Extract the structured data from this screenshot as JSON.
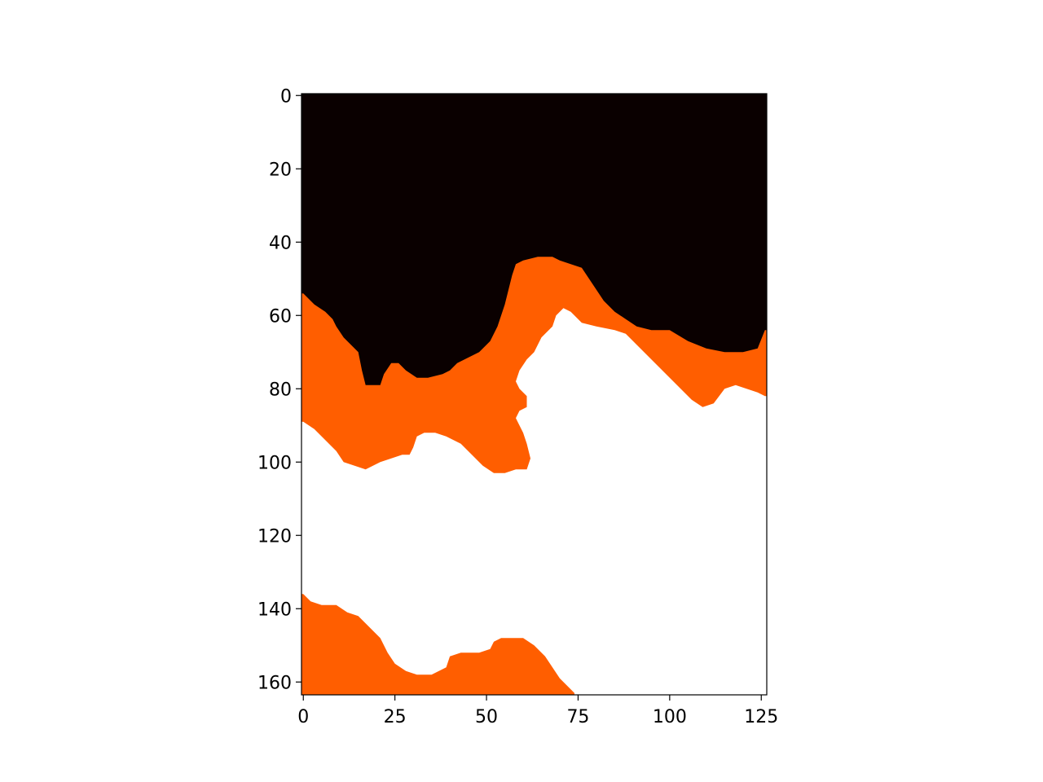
{
  "chart_data": {
    "type": "heatmap",
    "title": "",
    "xlabel": "",
    "ylabel": "",
    "grid": false,
    "xlim": [
      -0.5,
      126.5
    ],
    "ylim": [
      163.5,
      -0.5
    ],
    "x_ticks": [
      0,
      25,
      50,
      75,
      100,
      125
    ],
    "y_ticks": [
      0,
      20,
      40,
      60,
      80,
      100,
      120,
      140,
      160
    ],
    "x_tick_labels": [
      "0",
      "25",
      "50",
      "75",
      "100",
      "125"
    ],
    "y_tick_labels": [
      "0",
      "20",
      "40",
      "60",
      "80",
      "100",
      "120",
      "140",
      "160"
    ],
    "classes": [
      {
        "value": 0,
        "color": "#0a0000"
      },
      {
        "value": 1,
        "color": "#ff5e00"
      },
      {
        "value": 2,
        "color": "#ffffff"
      }
    ],
    "orange_top_boundary": [
      [
        0,
        54
      ],
      [
        3,
        57
      ],
      [
        6,
        59
      ],
      [
        8,
        61
      ],
      [
        9,
        63
      ],
      [
        11,
        66
      ],
      [
        13,
        68
      ],
      [
        15,
        70
      ],
      [
        16,
        75
      ],
      [
        17,
        79
      ],
      [
        21,
        79
      ],
      [
        22,
        76
      ],
      [
        24,
        73
      ],
      [
        26,
        73
      ],
      [
        28,
        75
      ],
      [
        31,
        77
      ],
      [
        34,
        77
      ],
      [
        38,
        76
      ],
      [
        40,
        75
      ],
      [
        42,
        73
      ],
      [
        44,
        72
      ],
      [
        46,
        71
      ],
      [
        48,
        70
      ],
      [
        51,
        67
      ],
      [
        53,
        63
      ],
      [
        54,
        60
      ],
      [
        55,
        57
      ],
      [
        56,
        53
      ],
      [
        57,
        49
      ],
      [
        58,
        46
      ],
      [
        60,
        45
      ],
      [
        64,
        44
      ],
      [
        68,
        44
      ],
      [
        70,
        45
      ],
      [
        73,
        46
      ],
      [
        76,
        47
      ],
      [
        78,
        50
      ],
      [
        80,
        53
      ],
      [
        82,
        56
      ],
      [
        85,
        59
      ],
      [
        88,
        61
      ],
      [
        91,
        63
      ],
      [
        95,
        64
      ],
      [
        100,
        64
      ],
      [
        105,
        67
      ],
      [
        110,
        69
      ],
      [
        115,
        70
      ],
      [
        120,
        70
      ],
      [
        124,
        69
      ],
      [
        126,
        64
      ]
    ],
    "white_top_boundary": [
      [
        0,
        89
      ],
      [
        3,
        91
      ],
      [
        6,
        94
      ],
      [
        9,
        97
      ],
      [
        11,
        100
      ],
      [
        14,
        101
      ],
      [
        17,
        102
      ],
      [
        19,
        101
      ],
      [
        21,
        100
      ],
      [
        24,
        99
      ],
      [
        27,
        98
      ],
      [
        29,
        98
      ],
      [
        30,
        96
      ],
      [
        31,
        93
      ],
      [
        33,
        92
      ],
      [
        36,
        92
      ],
      [
        39,
        93
      ],
      [
        41,
        94
      ],
      [
        43,
        95
      ],
      [
        45,
        97
      ],
      [
        47,
        99
      ],
      [
        49,
        101
      ],
      [
        52,
        103
      ],
      [
        55,
        103
      ],
      [
        58,
        102
      ],
      [
        61,
        102
      ],
      [
        62,
        99
      ],
      [
        61,
        95
      ],
      [
        60,
        92
      ],
      [
        58,
        88
      ],
      [
        59,
        86
      ],
      [
        61,
        85
      ],
      [
        61,
        82
      ],
      [
        59,
        80
      ],
      [
        58,
        78
      ],
      [
        59,
        75
      ],
      [
        61,
        72
      ],
      [
        63,
        70
      ],
      [
        65,
        66
      ],
      [
        68,
        63
      ],
      [
        69,
        60
      ],
      [
        71,
        58
      ],
      [
        73,
        59
      ],
      [
        76,
        62
      ],
      [
        80,
        63
      ],
      [
        85,
        64
      ],
      [
        88,
        65
      ],
      [
        90,
        67
      ],
      [
        93,
        70
      ],
      [
        96,
        73
      ],
      [
        99,
        76
      ],
      [
        101,
        78
      ],
      [
        103,
        80
      ],
      [
        106,
        83
      ],
      [
        109,
        85
      ],
      [
        112,
        84
      ],
      [
        115,
        80
      ],
      [
        118,
        79
      ],
      [
        121,
        80
      ],
      [
        124,
        81
      ],
      [
        126,
        82
      ]
    ],
    "orange_bottom_boundary": [
      [
        0,
        136
      ],
      [
        2,
        138
      ],
      [
        5,
        139
      ],
      [
        9,
        139
      ],
      [
        12,
        141
      ],
      [
        15,
        142
      ],
      [
        18,
        145
      ],
      [
        21,
        148
      ],
      [
        23,
        152
      ],
      [
        25,
        155
      ],
      [
        28,
        157
      ],
      [
        31,
        158
      ],
      [
        35,
        158
      ],
      [
        39,
        156
      ],
      [
        40,
        153
      ],
      [
        43,
        152
      ],
      [
        48,
        152
      ],
      [
        51,
        151
      ],
      [
        52,
        149
      ],
      [
        54,
        148
      ],
      [
        60,
        148
      ],
      [
        63,
        150
      ],
      [
        66,
        153
      ],
      [
        68,
        156
      ],
      [
        70,
        159
      ],
      [
        72,
        161
      ],
      [
        74,
        163
      ]
    ]
  }
}
